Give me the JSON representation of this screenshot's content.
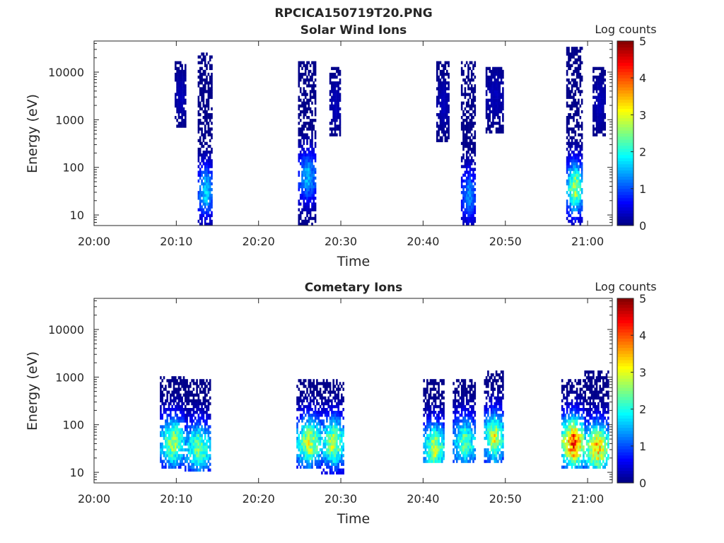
{
  "figure_title": "RPCICA150719T20.PNG",
  "chart_data": [
    {
      "type": "heatmap",
      "title": "Solar Wind Ions",
      "xlabel": "Time",
      "ylabel": "Energy (eV)",
      "x_ticks": [
        "20:00",
        "20:10",
        "20:20",
        "20:30",
        "20:40",
        "20:50",
        "21:00"
      ],
      "y_ticks": [
        "10",
        "100",
        "1000",
        "10000"
      ],
      "y_scale": "log",
      "ylim": [
        6,
        45000
      ],
      "xlim": [
        "20:00",
        "21:03"
      ],
      "colorbar": {
        "label": "Log counts",
        "ticks": [
          "0",
          "1",
          "2",
          "3",
          "4",
          "5"
        ],
        "range": [
          0,
          5
        ],
        "colormap": "jet"
      },
      "bursts": [
        {
          "t_start": "20:12.6",
          "t_end": "20:14.4",
          "e_min": 6,
          "e_max": 25000,
          "peak_log_counts": 1.8,
          "peak_energy": 30
        },
        {
          "t_start": "20:09.8",
          "t_end": "20:11.2",
          "e_min": 600,
          "e_max": 15000,
          "peak_log_counts": 0.3,
          "peak_energy": 3000
        },
        {
          "t_start": "20:24.8",
          "t_end": "20:27.0",
          "e_min": 6,
          "e_max": 15000,
          "peak_log_counts": 1.6,
          "peak_energy": 60
        },
        {
          "t_start": "20:28.6",
          "t_end": "20:30.0",
          "e_min": 400,
          "e_max": 12000,
          "peak_log_counts": 0.3,
          "peak_energy": 2000
        },
        {
          "t_start": "20:44.6",
          "t_end": "20:46.4",
          "e_min": 6,
          "e_max": 15000,
          "peak_log_counts": 1.4,
          "peak_energy": 25
        },
        {
          "t_start": "20:41.6",
          "t_end": "20:43.2",
          "e_min": 300,
          "e_max": 15000,
          "peak_log_counts": 0.3,
          "peak_energy": 2000
        },
        {
          "t_start": "20:47.6",
          "t_end": "20:49.8",
          "e_min": 500,
          "e_max": 12000,
          "peak_log_counts": 0.3,
          "peak_energy": 3000
        },
        {
          "t_start": "20:57.4",
          "t_end": "20:59.4",
          "e_min": 6,
          "e_max": 30000,
          "peak_log_counts": 2.8,
          "peak_energy": 35
        },
        {
          "t_start": "21:00.6",
          "t_end": "21:02.2",
          "e_min": 400,
          "e_max": 12000,
          "peak_log_counts": 0.3,
          "peak_energy": 2000
        }
      ]
    },
    {
      "type": "heatmap",
      "title": "Cometary Ions",
      "xlabel": "Time",
      "ylabel": "Energy (eV)",
      "x_ticks": [
        "20:00",
        "20:10",
        "20:20",
        "20:30",
        "20:40",
        "20:50",
        "21:00"
      ],
      "y_ticks": [
        "10",
        "100",
        "1000",
        "10000"
      ],
      "y_scale": "log",
      "ylim": [
        6,
        45000
      ],
      "xlim": [
        "20:00",
        "21:03"
      ],
      "colorbar": {
        "label": "Log counts",
        "ticks": [
          "0",
          "1",
          "2",
          "3",
          "4",
          "5"
        ],
        "range": [
          0,
          5
        ],
        "colormap": "jet"
      },
      "bursts": [
        {
          "t_start": "20:08.0",
          "t_end": "20:11.0",
          "e_min": 12,
          "e_max": 1000,
          "peak_log_counts": 2.8,
          "peak_energy": 40
        },
        {
          "t_start": "20:11.0",
          "t_end": "20:14.2",
          "e_min": 10,
          "e_max": 800,
          "peak_log_counts": 2.6,
          "peak_energy": 30
        },
        {
          "t_start": "20:24.6",
          "t_end": "20:27.6",
          "e_min": 12,
          "e_max": 900,
          "peak_log_counts": 3.0,
          "peak_energy": 40
        },
        {
          "t_start": "20:27.6",
          "t_end": "20:30.4",
          "e_min": 8,
          "e_max": 800,
          "peak_log_counts": 2.9,
          "peak_energy": 40
        },
        {
          "t_start": "20:40.0",
          "t_end": "20:42.6",
          "e_min": 14,
          "e_max": 900,
          "peak_log_counts": 2.9,
          "peak_energy": 30
        },
        {
          "t_start": "20:43.6",
          "t_end": "20:46.4",
          "e_min": 14,
          "e_max": 800,
          "peak_log_counts": 2.5,
          "peak_energy": 40
        },
        {
          "t_start": "20:47.4",
          "t_end": "20:49.8",
          "e_min": 14,
          "e_max": 1300,
          "peak_log_counts": 3.0,
          "peak_energy": 50
        },
        {
          "t_start": "20:56.8",
          "t_end": "20:59.6",
          "e_min": 12,
          "e_max": 800,
          "peak_log_counts": 4.2,
          "peak_energy": 40
        },
        {
          "t_start": "20:59.6",
          "t_end": "21:02.6",
          "e_min": 12,
          "e_max": 1200,
          "peak_log_counts": 3.5,
          "peak_energy": 30
        }
      ]
    }
  ]
}
